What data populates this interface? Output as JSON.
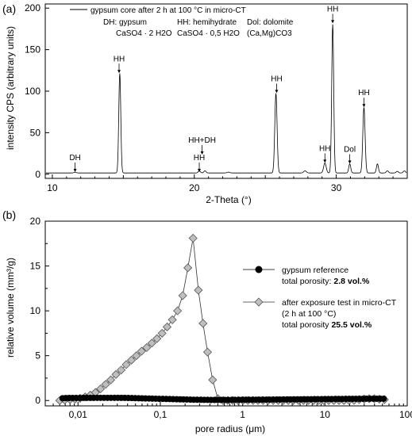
{
  "chart_data": [
    {
      "panel_label": "(a)",
      "type": "line",
      "xlabel": "2-Theta (°)",
      "ylabel": "intensity CPS (arbitrary units)",
      "xlim": [
        9.5,
        35
      ],
      "ylim": [
        -5,
        205
      ],
      "xticks": [
        10,
        20,
        30
      ],
      "yticks": [
        0,
        50,
        100,
        150,
        200
      ],
      "legend": {
        "position": "top",
        "line_label": "gypsum core after 2 h at 100 °C in micro-CT",
        "defs": [
          {
            "name": "DH: gypsum",
            "formula": "CaSO4 · 2 H2O"
          },
          {
            "name": "HH: hemihydrate",
            "formula": "CaSO4 · 0,5 H2O"
          },
          {
            "name": "Dol: dolomite",
            "formula": "(Ca,Mg)CO3"
          }
        ]
      },
      "baseline": 1.5,
      "peaks": [
        {
          "x": 11.6,
          "y": 1.0,
          "w": 0.08
        },
        {
          "x": 14.75,
          "y": 120,
          "w": 0.07
        },
        {
          "x": 20.35,
          "y": 2.5,
          "w": 0.08
        },
        {
          "x": 20.75,
          "y": 2.5,
          "w": 0.08
        },
        {
          "x": 22.4,
          "y": 1.0,
          "w": 0.1
        },
        {
          "x": 25.75,
          "y": 96,
          "w": 0.08
        },
        {
          "x": 27.8,
          "y": 2.5,
          "w": 0.1
        },
        {
          "x": 29.2,
          "y": 12,
          "w": 0.09
        },
        {
          "x": 29.75,
          "y": 179,
          "w": 0.07
        },
        {
          "x": 30.95,
          "y": 11,
          "w": 0.07
        },
        {
          "x": 31.95,
          "y": 79,
          "w": 0.08
        },
        {
          "x": 32.9,
          "y": 11,
          "w": 0.07
        },
        {
          "x": 33.6,
          "y": 2.5,
          "w": 0.08
        },
        {
          "x": 34.3,
          "y": 2.0,
          "w": 0.08
        },
        {
          "x": 34.8,
          "y": 2.5,
          "w": 0.08
        }
      ],
      "annotations": [
        {
          "text": "DH",
          "x": 11.6,
          "y": 17
        },
        {
          "text": "HH",
          "x": 14.7,
          "y": 136
        },
        {
          "text": "HH",
          "x": 20.35,
          "y": 17
        },
        {
          "text": "HH+DH",
          "x": 20.55,
          "y": 38
        },
        {
          "text": "HH",
          "x": 25.8,
          "y": 112
        },
        {
          "text": "HH",
          "x": 29.2,
          "y": 28
        },
        {
          "text": "HH",
          "x": 29.75,
          "y": 196
        },
        {
          "text": "Dol",
          "x": 30.95,
          "y": 27
        },
        {
          "text": "HH",
          "x": 31.95,
          "y": 95
        }
      ]
    },
    {
      "panel_label": "(b)",
      "type": "scatter",
      "xscale": "log",
      "xlabel": "pore radius (μm)",
      "ylabel": "relative volume (mm³/g)",
      "xlim": [
        0.004,
        100
      ],
      "ylim": [
        -0.6,
        20
      ],
      "xticks": [
        0.01,
        0.1,
        1,
        10,
        100
      ],
      "xticklabels": [
        "0,01",
        "0,1",
        "1",
        "10",
        "100"
      ],
      "yticks": [
        0,
        5,
        10,
        15,
        20
      ],
      "legend": "right",
      "series": [
        {
          "legend": {
            "label": "gypsum reference",
            "detail_prefix": "total porosity: ",
            "detail_value": "2.8 vol.%"
          },
          "marker": "circle",
          "color": "#000000",
          "points": [
            [
              0.0065,
              0.25
            ],
            [
              0.0071,
              0.27
            ],
            [
              0.0078,
              0.28
            ],
            [
              0.0086,
              0.28
            ],
            [
              0.0095,
              0.28
            ],
            [
              0.0105,
              0.28
            ],
            [
              0.0116,
              0.29
            ],
            [
              0.0128,
              0.29
            ],
            [
              0.0141,
              0.29
            ],
            [
              0.0155,
              0.29
            ],
            [
              0.0171,
              0.3
            ],
            [
              0.0188,
              0.3
            ],
            [
              0.0207,
              0.3
            ],
            [
              0.0228,
              0.3
            ],
            [
              0.0251,
              0.3
            ],
            [
              0.0277,
              0.3
            ],
            [
              0.0305,
              0.3
            ],
            [
              0.0336,
              0.29
            ],
            [
              0.037,
              0.29
            ],
            [
              0.0408,
              0.28
            ],
            [
              0.045,
              0.27
            ],
            [
              0.0495,
              0.26
            ],
            [
              0.0545,
              0.25
            ],
            [
              0.06,
              0.24
            ],
            [
              0.066,
              0.23
            ],
            [
              0.073,
              0.22
            ],
            [
              0.08,
              0.21
            ],
            [
              0.088,
              0.2
            ],
            [
              0.097,
              0.19
            ],
            [
              0.107,
              0.18
            ],
            [
              0.118,
              0.17
            ],
            [
              0.13,
              0.16
            ],
            [
              0.143,
              0.15
            ],
            [
              0.158,
              0.14
            ],
            [
              0.174,
              0.13
            ],
            [
              0.191,
              0.12
            ],
            [
              0.21,
              0.11
            ],
            [
              0.232,
              0.1
            ],
            [
              0.255,
              0.09
            ],
            [
              0.281,
              0.08
            ],
            [
              0.31,
              0.08
            ],
            [
              0.341,
              0.07
            ],
            [
              0.375,
              0.07
            ],
            [
              0.413,
              0.06
            ],
            [
              0.455,
              0.06
            ],
            [
              0.5,
              0.06
            ],
            [
              0.55,
              0.06
            ],
            [
              0.61,
              0.06
            ],
            [
              0.67,
              0.06
            ],
            [
              0.74,
              0.07
            ],
            [
              0.81,
              0.07
            ],
            [
              0.9,
              0.07
            ],
            [
              0.99,
              0.08
            ],
            [
              1.09,
              0.08
            ],
            [
              1.2,
              0.08
            ],
            [
              1.32,
              0.09
            ],
            [
              1.45,
              0.09
            ],
            [
              1.6,
              0.09
            ],
            [
              1.76,
              0.1
            ],
            [
              1.94,
              0.1
            ],
            [
              2.13,
              0.1
            ],
            [
              2.35,
              0.11
            ],
            [
              2.59,
              0.11
            ],
            [
              2.85,
              0.11
            ],
            [
              3.14,
              0.12
            ],
            [
              3.46,
              0.12
            ],
            [
              3.81,
              0.12
            ],
            [
              4.2,
              0.13
            ],
            [
              4.62,
              0.13
            ],
            [
              5.09,
              0.13
            ],
            [
              5.6,
              0.14
            ],
            [
              6.17,
              0.14
            ],
            [
              6.8,
              0.14
            ],
            [
              7.5,
              0.15
            ],
            [
              8.2,
              0.15
            ],
            [
              9.1,
              0.15
            ],
            [
              10,
              0.16
            ],
            [
              11,
              0.16
            ],
            [
              12.1,
              0.16
            ],
            [
              13.4,
              0.17
            ],
            [
              14.7,
              0.17
            ],
            [
              16.2,
              0.17
            ],
            [
              17.9,
              0.18
            ],
            [
              19.7,
              0.18
            ],
            [
              21.7,
              0.18
            ],
            [
              23.9,
              0.19
            ],
            [
              26.3,
              0.19
            ],
            [
              29,
              0.19
            ],
            [
              31.9,
              0.2
            ],
            [
              35.2,
              0.2
            ],
            [
              38.7,
              0.2
            ],
            [
              42.7,
              0.2
            ],
            [
              47,
              0.2
            ],
            [
              51.8,
              0.2
            ]
          ]
        },
        {
          "legend": {
            "label": "after exposure test in micro-CT",
            "label2": "(2 h at 100 °C)",
            "detail_prefix": "total porosity ",
            "detail_value": "25.5 vol.%"
          },
          "marker": "diamond",
          "color": "#bfbfbf",
          "points": [
            [
              0.006,
              0.0
            ],
            [
              0.0069,
              0.05
            ],
            [
              0.008,
              0.1
            ],
            [
              0.0092,
              0.15
            ],
            [
              0.0106,
              0.25
            ],
            [
              0.0122,
              0.4
            ],
            [
              0.0141,
              0.6
            ],
            [
              0.0163,
              0.9
            ],
            [
              0.0188,
              1.3
            ],
            [
              0.0217,
              1.8
            ],
            [
              0.025,
              2.3
            ],
            [
              0.0289,
              2.9
            ],
            [
              0.0334,
              3.4
            ],
            [
              0.0385,
              4.0
            ],
            [
              0.0445,
              4.5
            ],
            [
              0.0513,
              5.0
            ],
            [
              0.0592,
              5.5
            ],
            [
              0.0684,
              5.9
            ],
            [
              0.0789,
              6.4
            ],
            [
              0.0911,
              6.9
            ],
            [
              0.105,
              7.5
            ],
            [
              0.121,
              8.2
            ],
            [
              0.14,
              9.0
            ],
            [
              0.162,
              10.0
            ],
            [
              0.187,
              11.7
            ],
            [
              0.216,
              14.8
            ],
            [
              0.25,
              18.1
            ],
            [
              0.29,
              12.3
            ],
            [
              0.33,
              8.6
            ],
            [
              0.375,
              5.4
            ],
            [
              0.432,
              2.3
            ],
            [
              0.5,
              0.2
            ],
            [
              0.58,
              0.0
            ],
            [
              0.66,
              0.0
            ],
            [
              0.76,
              0.0
            ],
            [
              0.88,
              0.0
            ],
            [
              1.01,
              0.0
            ],
            [
              1.16,
              0.0
            ],
            [
              1.34,
              0.0
            ],
            [
              1.54,
              0.0
            ],
            [
              1.77,
              0.0
            ],
            [
              2.04,
              0.0
            ],
            [
              2.35,
              0.0
            ],
            [
              2.71,
              0.0
            ],
            [
              3.12,
              0.0
            ],
            [
              3.59,
              0.0
            ],
            [
              4.14,
              0.0
            ],
            [
              4.77,
              0.0
            ],
            [
              5.49,
              0.0
            ],
            [
              6.32,
              0.0
            ],
            [
              7.28,
              0.0
            ],
            [
              8.39,
              0.0
            ],
            [
              9.66,
              0.0
            ],
            [
              11.1,
              0.0
            ],
            [
              12.8,
              0.0
            ],
            [
              14.8,
              0.0
            ],
            [
              17,
              0.0
            ],
            [
              19.6,
              0.0
            ],
            [
              22.6,
              0.02
            ],
            [
              26,
              0.1
            ],
            [
              30,
              0.17
            ],
            [
              34.5,
              0.2
            ],
            [
              39.8,
              0.2
            ],
            [
              45.8,
              0.15
            ],
            [
              52.8,
              0.1
            ]
          ]
        }
      ]
    }
  ]
}
